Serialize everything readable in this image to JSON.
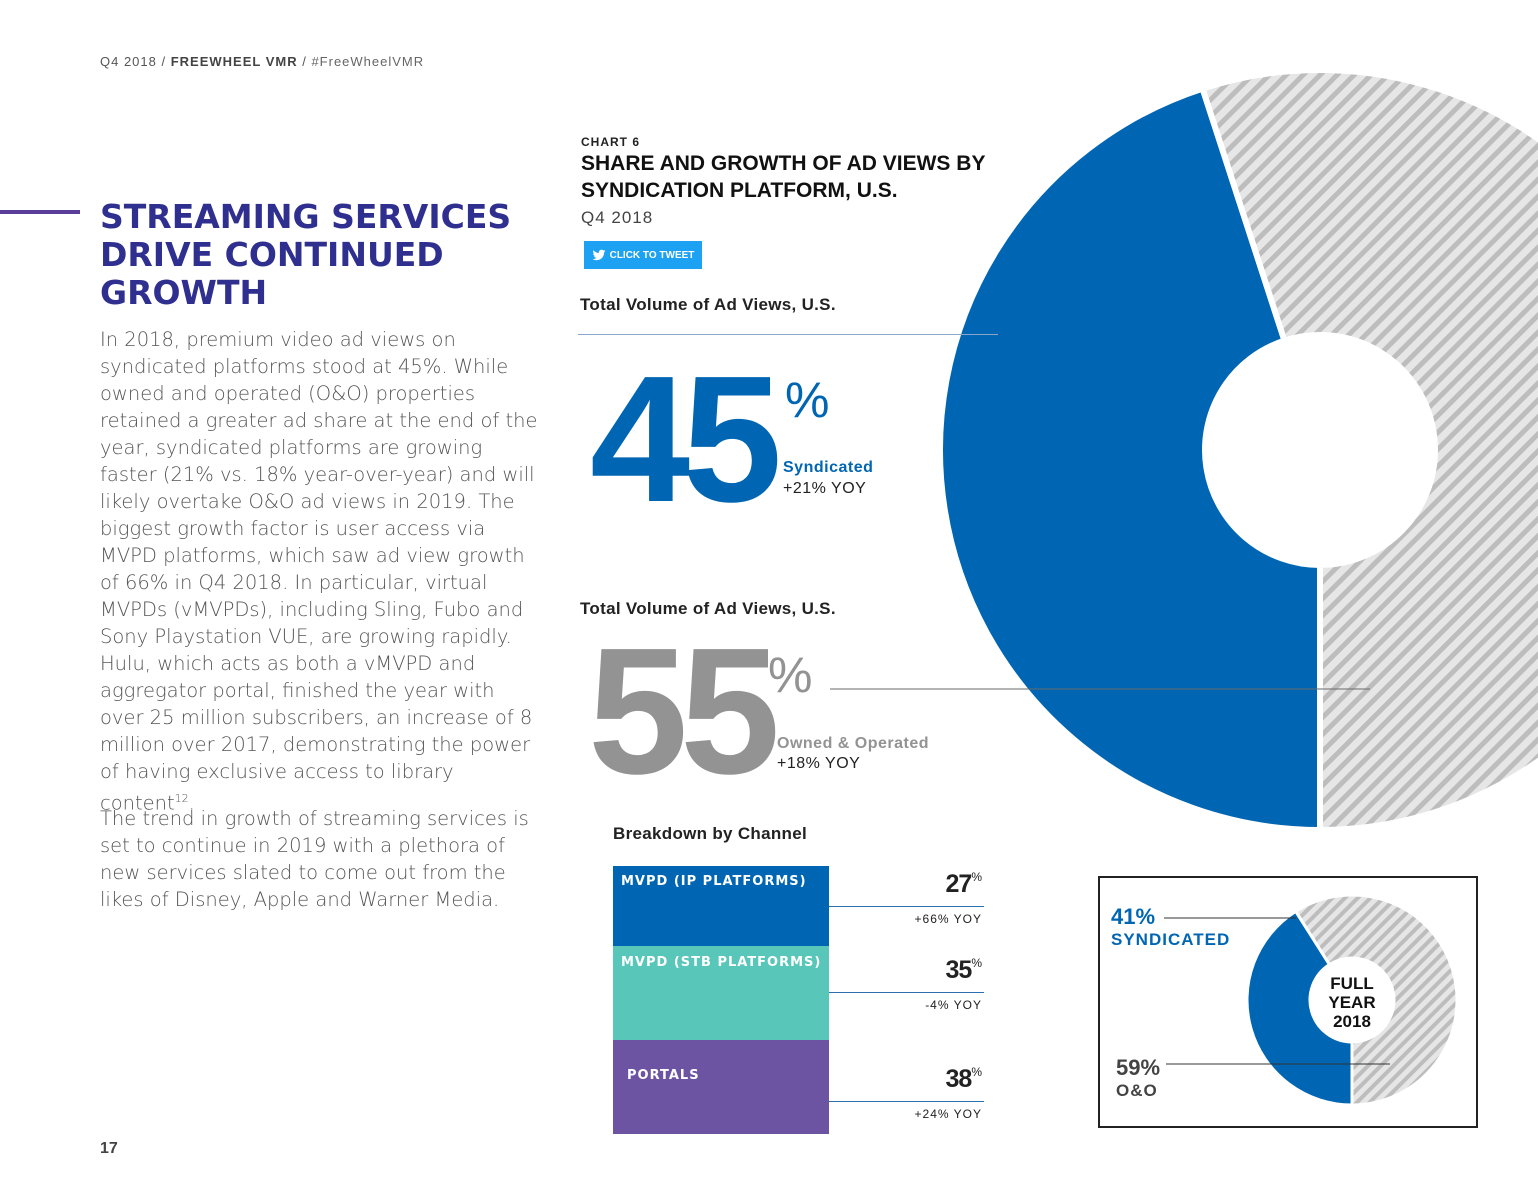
{
  "header": {
    "period": "Q4 2018",
    "brand": "FREEWHEEL VMR",
    "hashtag": "#FreeWheelVMR"
  },
  "section": {
    "title": "STREAMING SERVICES DRIVE CONTINUED GROWTH",
    "para1": "In 2018, premium video ad views on syndicated platforms stood at 45%. While owned and operated (O&O) properties retained a greater ad share at the end of the year, syndicated platforms are growing faster (21% vs. 18% year-over-year) and will likely overtake O&O ad views in 2019. The biggest growth factor is user access via MVPD platforms, which saw ad view growth of 66% in Q4 2018. In particular, virtual MVPDs (vMVPDs), including Sling, Fubo and Sony Playstation VUE, are growing rapidly. Hulu, which acts as both a vMVPD and aggregator portal, finished the year with over 25 million subscribers, an increase of 8 million over 2017, demonstrating the power of having exclusive access to library content",
    "para1_footnote": "12",
    "para1_end": ".",
    "para2": "The trend in growth of streaming services is set to continue in 2019 with a plethora of new services slated to come out from the likes of Disney, Apple and Warner Media."
  },
  "page_number": "17",
  "chart": {
    "eyebrow": "CHART 6",
    "title": "SHARE AND GROWTH OF AD VIEWS BY SYNDICATION PLATFORM, U.S.",
    "period": "Q4 2018",
    "tweet_label": "CLICK TO TWEET",
    "total_label_1": "Total Volume of Ad Views, U.S.",
    "total_label_2": "Total Volume of Ad Views, U.S.",
    "syndicated": {
      "value": "45",
      "pct": "%",
      "name": "Syndicated",
      "yoy": "+21% YOY"
    },
    "owned": {
      "value": "55",
      "pct": "%",
      "name": "Owned & Operated",
      "yoy": "+18% YOY"
    },
    "breakdown_title": "Breakdown by Channel",
    "channels": [
      {
        "label": "MVPD (IP PLATFORMS)",
        "value": "27",
        "pct": "%",
        "yoy": "+66% YOY"
      },
      {
        "label": "MVPD (STB PLATFORMS)",
        "value": "35",
        "pct": "%",
        "yoy": "-4% YOY"
      },
      {
        "label": "PORTALS",
        "value": "38",
        "pct": "%",
        "yoy": "+24% YOY"
      }
    ],
    "full_year": {
      "syndicated_pct": "41%",
      "syndicated_label": "SYNDICATED",
      "oo_pct": "59%",
      "oo_label": "O&O",
      "center_1": "FULL",
      "center_2": "YEAR",
      "center_3": "2018"
    }
  },
  "colors": {
    "syndicated": "#0066b3",
    "owned": "#939393",
    "mvpd_ip": "#0066b3",
    "mvpd_stb": "#58c6b8",
    "portals": "#6d54a3",
    "title": "#2e2f8f"
  },
  "chart_data": [
    {
      "type": "pie",
      "title": "Total Volume of Ad Views, U.S.",
      "categories": [
        "Syndicated",
        "Owned & Operated"
      ],
      "values": [
        45,
        55
      ]
    },
    {
      "type": "bar",
      "title": "Breakdown by Channel",
      "categories": [
        "MVPD (IP PLATFORMS)",
        "MVPD (STB PLATFORMS)",
        "PORTALS"
      ],
      "values": [
        27,
        35,
        38
      ]
    },
    {
      "type": "pie",
      "categories": [
        "SYNDICATED",
        "O&O"
      ],
      "values": [
        41,
        59
      ]
    }
  ]
}
